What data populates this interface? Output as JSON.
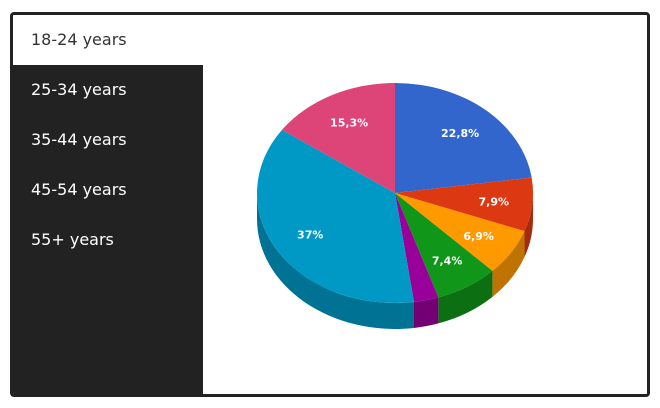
{
  "tabs": {
    "active": "18-24 years",
    "items": [
      "25-34 years",
      "35-44 years",
      "45-54 years",
      "55+ years"
    ]
  },
  "chart_data": {
    "type": "pie",
    "style": "3d",
    "slices": [
      {
        "label": "22,8%",
        "value": 22.8,
        "color": "#3366cc",
        "side_color": "#264c99"
      },
      {
        "label": "7,9%",
        "value": 7.9,
        "color": "#dc3912",
        "side_color": "#a52b0e"
      },
      {
        "label": "6,9%",
        "value": 6.9,
        "color": "#ff9900",
        "side_color": "#bf7300"
      },
      {
        "label": "7,4%",
        "value": 7.4,
        "color": "#109618",
        "side_color": "#0c7012"
      },
      {
        "label": "",
        "value": 2.9,
        "color": "#990099",
        "side_color": "#730073"
      },
      {
        "label": "37%",
        "value": 37.0,
        "color": "#0099c6",
        "side_color": "#007394"
      },
      {
        "label": "15,3%",
        "value": 15.3,
        "color": "#dd4477",
        "side_color": "#a63359"
      }
    ]
  }
}
